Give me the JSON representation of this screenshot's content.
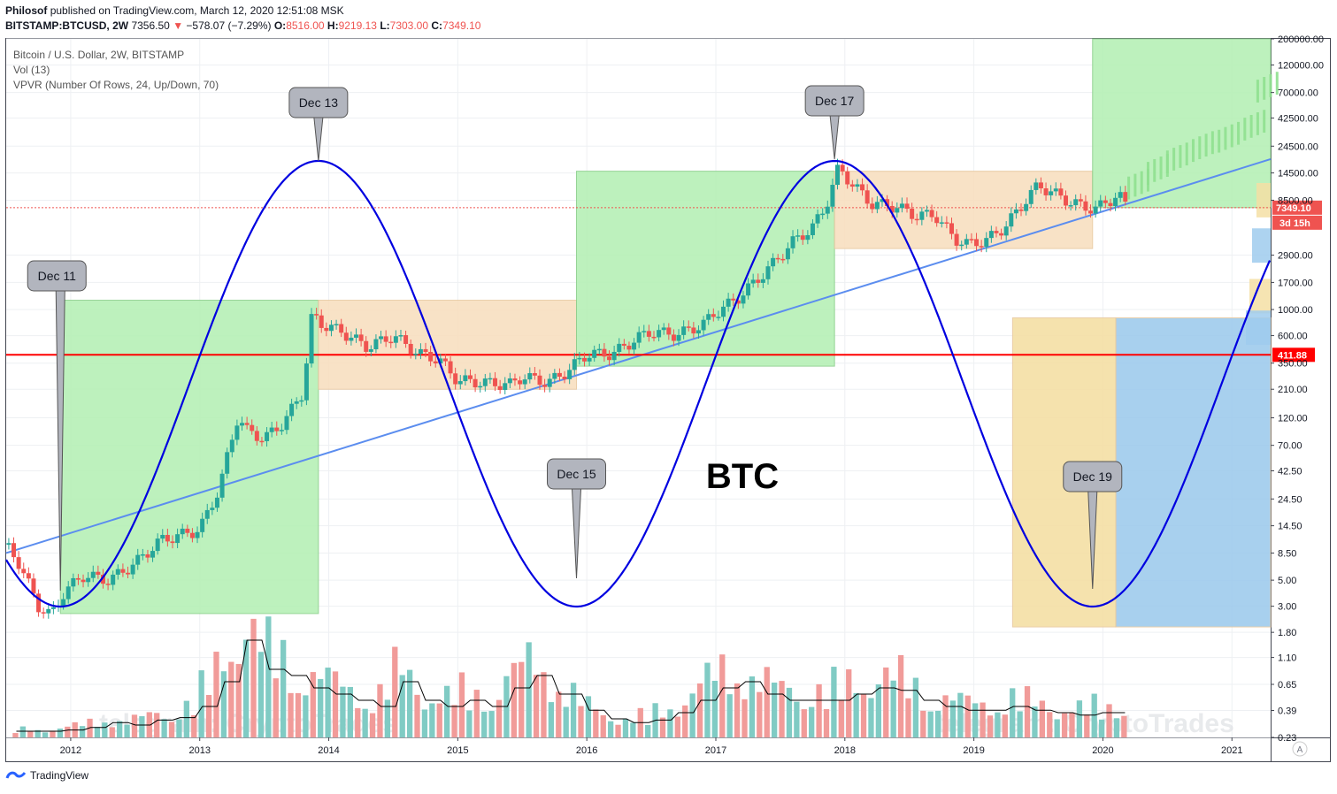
{
  "header": {
    "author": "Philosof",
    "published": "published on TradingView.com, March 12, 2020 12:51:08 MSK",
    "symbol": "BITSTAMP:BTCUSD, 2W",
    "price": "7356.50",
    "change": "−578.07 (−7.29%)",
    "o_label": "O:",
    "o_val": "8516.00",
    "h_label": "H:",
    "h_val": "9219.13",
    "l_label": "L:",
    "l_val": "7303.00",
    "c_label": "C:",
    "c_val": "7349.10"
  },
  "legend": {
    "title": "Bitcoin / U.S. Dollar, 2W, BITSTAMP",
    "vol": "Vol (13)",
    "vpvr": "VPVR (Number Of Rows, 24, Up/Down, 70)"
  },
  "watermark_left": "telegram: CryptoTrades",
  "watermark_right": "telegram: CryptoTrades",
  "footer_brand": "TradingView",
  "colors": {
    "up": "#26a69a",
    "down": "#ef5350",
    "vol_up": "#80cbc4",
    "vol_down": "#f19b99",
    "sine": "#0000e0",
    "trend": "#5b8def",
    "hline": "#ff0000",
    "green_box": "#b6f0b6",
    "orange_box": "#f8dfc0",
    "yellow_box": "#f5dfa5",
    "blue_box": "#9fcbed"
  },
  "chart_data": {
    "type": "candlestick",
    "title": "BTC",
    "y_scale": "log",
    "ylim": [
      0.23,
      200000
    ],
    "y_ticks": [
      "200000.00",
      "120000.00",
      "70000.00",
      "42500.00",
      "24500.00",
      "14500.00",
      "8500.00",
      "2900.00",
      "1700.00",
      "1000.00",
      "600.00",
      "350.00",
      "210.00",
      "120.00",
      "70.00",
      "42.50",
      "24.50",
      "14.50",
      "8.50",
      "5.00",
      "3.00",
      "1.80",
      "1.10",
      "0.65",
      "0.39",
      "0.23"
    ],
    "x_ticks": [
      "2012",
      "2013",
      "2014",
      "2015",
      "2016",
      "2017",
      "2018",
      "2019",
      "2020",
      "2021"
    ],
    "last_price_label": "7349.10",
    "countdown_label": "3d 15h",
    "hline": {
      "value": 411.88,
      "label": "411.88"
    },
    "cycle_labels": [
      {
        "text": "Dec 11",
        "date": 2011.92
      },
      {
        "text": "Dec 13",
        "date": 2013.92
      },
      {
        "text": "Dec 15",
        "date": 2015.92
      },
      {
        "text": "Dec 17",
        "date": 2017.92
      },
      {
        "text": "Dec 19",
        "date": 2019.92
      }
    ],
    "price_path": [
      [
        2011.5,
        10
      ],
      [
        2011.6,
        7
      ],
      [
        2011.75,
        3
      ],
      [
        2011.85,
        2.5
      ],
      [
        2011.95,
        4
      ],
      [
        2012.1,
        5.5
      ],
      [
        2012.3,
        5
      ],
      [
        2012.5,
        7
      ],
      [
        2012.7,
        11
      ],
      [
        2012.9,
        12.5
      ],
      [
        2013.0,
        13.5
      ],
      [
        2013.15,
        30
      ],
      [
        2013.3,
        130
      ],
      [
        2013.35,
        95
      ],
      [
        2013.5,
        80
      ],
      [
        2013.65,
        110
      ],
      [
        2013.8,
        200
      ],
      [
        2013.87,
        900
      ],
      [
        2013.95,
        750
      ],
      [
        2014.1,
        650
      ],
      [
        2014.3,
        480
      ],
      [
        2014.5,
        600
      ],
      [
        2014.7,
        420
      ],
      [
        2014.85,
        380
      ],
      [
        2015.0,
        250
      ],
      [
        2015.2,
        240
      ],
      [
        2015.4,
        230
      ],
      [
        2015.5,
        270
      ],
      [
        2015.7,
        240
      ],
      [
        2015.85,
        300
      ],
      [
        2016.0,
        420
      ],
      [
        2016.2,
        420
      ],
      [
        2016.4,
        580
      ],
      [
        2016.5,
        650
      ],
      [
        2016.7,
        610
      ],
      [
        2016.9,
        750
      ],
      [
        2017.0,
        950
      ],
      [
        2017.15,
        1200
      ],
      [
        2017.3,
        1700
      ],
      [
        2017.45,
        2500
      ],
      [
        2017.6,
        3800
      ],
      [
        2017.75,
        5000
      ],
      [
        2017.85,
        7500
      ],
      [
        2017.95,
        16000
      ],
      [
        2018.05,
        12000
      ],
      [
        2018.2,
        8000
      ],
      [
        2018.4,
        7500
      ],
      [
        2018.55,
        6300
      ],
      [
        2018.7,
        6400
      ],
      [
        2018.85,
        4000
      ],
      [
        2018.95,
        3600
      ],
      [
        2019.1,
        3900
      ],
      [
        2019.25,
        5200
      ],
      [
        2019.4,
        8500
      ],
      [
        2019.5,
        11500
      ],
      [
        2019.6,
        10000
      ],
      [
        2019.75,
        8200
      ],
      [
        2019.85,
        7500
      ],
      [
        2019.95,
        7200
      ],
      [
        2020.05,
        8500
      ],
      [
        2020.12,
        9500
      ],
      [
        2020.19,
        7349
      ]
    ],
    "projection": [
      [
        2020.3,
        12000
      ],
      [
        2020.45,
        16000
      ],
      [
        2020.6,
        20000
      ],
      [
        2020.8,
        25000
      ],
      [
        2021.0,
        30000
      ],
      [
        2021.2,
        38000
      ],
      [
        2021.3,
        80000
      ]
    ],
    "trendline": [
      [
        2011.5,
        8.5
      ],
      [
        2021.3,
        19000
      ]
    ],
    "volume_level": [
      0.05,
      0.05,
      0.06,
      0.08,
      0.12,
      0.1,
      0.14,
      0.16,
      0.25,
      0.45,
      0.8,
      0.55,
      0.5,
      0.4,
      0.35,
      0.3,
      0.25,
      0.45,
      0.3,
      0.25,
      0.3,
      0.25,
      0.4,
      0.5,
      0.35,
      0.22,
      0.15,
      0.12,
      0.14,
      0.2,
      0.3,
      0.4,
      0.45,
      0.35,
      0.3,
      0.3,
      0.3,
      0.35,
      0.4,
      0.38,
      0.3,
      0.25,
      0.22,
      0.22,
      0.25,
      0.22,
      0.2,
      0.18,
      0.2,
      0.2
    ]
  }
}
